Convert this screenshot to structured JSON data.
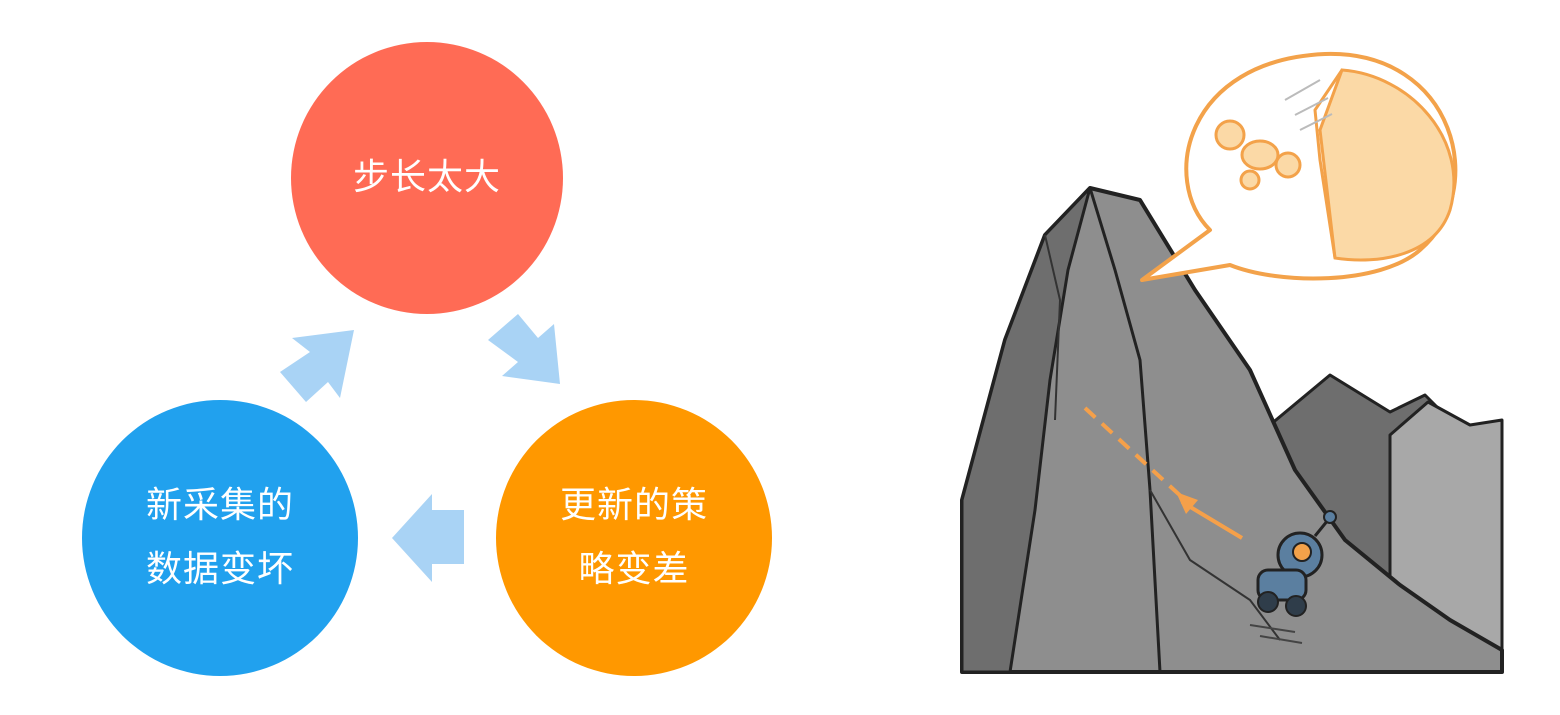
{
  "diagram": {
    "nodes": [
      {
        "id": "step-too-large",
        "lines": [
          "步长太大"
        ],
        "color": "#FF6B55"
      },
      {
        "id": "policy-worse",
        "lines": [
          "更新的策",
          "略变差"
        ],
        "color": "#FF9800"
      },
      {
        "id": "data-worse",
        "lines": [
          "新采集的",
          "数据变坏"
        ],
        "color": "#21A1EE"
      }
    ],
    "arrow_color": "#A9D3F5",
    "arrows": [
      {
        "from": "step-too-large",
        "to": "policy-worse"
      },
      {
        "from": "policy-worse",
        "to": "data-worse"
      },
      {
        "from": "data-worse",
        "to": "step-too-large"
      }
    ]
  },
  "illustration": {
    "mountain_color": "#8E8E8E",
    "mountain_shadow_color": "#6E6E6E",
    "path_color": "#F5A04A",
    "bubble_color": "#F3A24A",
    "robot_color": "#5B7FA0"
  }
}
